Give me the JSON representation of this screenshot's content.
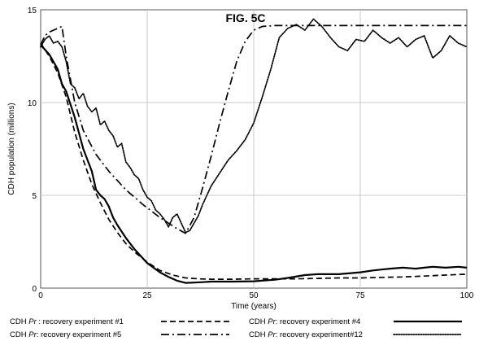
{
  "chart_data": {
    "type": "line",
    "title": "FIG. 5C",
    "xlabel": "Time (years)",
    "ylabel": "CDH population (millions)",
    "xlim": [
      0,
      100
    ],
    "ylim": [
      0,
      15
    ],
    "x_ticks": [
      "0",
      "25",
      "50",
      "75",
      "100"
    ],
    "y_ticks": [
      "0",
      "5",
      "10",
      "15"
    ],
    "grid": true,
    "legend_position": "bottom",
    "series": [
      {
        "name_prefix": "CDH ",
        "name_italic": "Pr",
        "name_suffix": " : recovery experiment #1",
        "style": "dashed",
        "x": [
          0,
          2,
          4,
          6,
          8,
          10,
          12,
          14,
          16,
          18,
          20,
          22,
          25,
          28,
          31,
          34,
          37,
          40,
          45,
          50,
          55,
          60,
          65,
          70,
          75,
          80,
          85,
          90,
          95,
          100
        ],
        "y": [
          13.2,
          12.5,
          11.6,
          10.3,
          8.4,
          6.9,
          5.6,
          4.6,
          3.7,
          3.0,
          2.4,
          1.95,
          1.4,
          0.95,
          0.7,
          0.55,
          0.5,
          0.48,
          0.48,
          0.5,
          0.5,
          0.5,
          0.52,
          0.55,
          0.55,
          0.58,
          0.6,
          0.65,
          0.7,
          0.75
        ]
      },
      {
        "name_prefix": "CDH ",
        "name_italic": "Pr",
        "name_suffix": ": recovery experiment #4",
        "style": "solid",
        "x": [
          0,
          2,
          4,
          5,
          6,
          8,
          10,
          12,
          13,
          14,
          15,
          16,
          17,
          18,
          20,
          22,
          25,
          28,
          30,
          32,
          34,
          36,
          38,
          40,
          45,
          50,
          55,
          58,
          62,
          65,
          70,
          75,
          78,
          80,
          82,
          85,
          88,
          90,
          92,
          95,
          98,
          100
        ],
        "y": [
          13.1,
          12.6,
          11.8,
          11.0,
          10.6,
          9.2,
          7.5,
          6.3,
          5.3,
          5.0,
          4.8,
          4.4,
          3.8,
          3.4,
          2.7,
          2.1,
          1.35,
          0.85,
          0.6,
          0.4,
          0.28,
          0.3,
          0.32,
          0.35,
          0.35,
          0.37,
          0.45,
          0.55,
          0.7,
          0.75,
          0.75,
          0.85,
          0.95,
          1.0,
          1.05,
          1.1,
          1.05,
          1.1,
          1.15,
          1.1,
          1.15,
          1.1
        ]
      },
      {
        "name_prefix": "CDH ",
        "name_italic": "Pr",
        "name_suffix": ": recovery experiment #5",
        "style": "dashdot",
        "x": [
          0,
          1,
          2,
          3,
          4,
          5,
          6,
          8,
          10,
          13,
          16,
          20,
          24,
          28,
          32,
          34,
          36,
          38,
          40,
          42,
          44,
          46,
          48,
          50,
          52,
          55,
          58,
          60,
          70,
          80,
          90,
          100
        ],
        "y": [
          13.1,
          13.6,
          13.8,
          13.9,
          14.0,
          14.1,
          12.5,
          10.0,
          8.5,
          7.2,
          6.3,
          5.3,
          4.5,
          3.8,
          3.2,
          2.95,
          3.8,
          5.4,
          7.1,
          8.9,
          10.6,
          12.2,
          13.3,
          13.9,
          14.1,
          14.15,
          14.15,
          14.15,
          14.15,
          14.15,
          14.15,
          14.15
        ]
      },
      {
        "name_prefix": "CDH ",
        "name_italic": "Pr",
        "name_suffix": ": recovery experiment#12",
        "style": "dotted",
        "x": [
          0,
          1,
          2,
          3,
          4,
          5,
          6,
          7,
          8,
          9,
          10,
          11,
          12,
          13,
          14,
          15,
          16,
          17,
          18,
          19,
          20,
          21,
          22,
          23,
          24,
          25,
          26,
          27,
          28,
          29,
          30,
          31,
          32,
          33,
          34,
          35,
          36,
          37,
          38,
          40,
          42,
          44,
          46,
          48,
          50,
          52,
          54,
          56,
          58,
          60,
          62,
          64,
          66,
          68,
          70,
          72,
          74,
          76,
          78,
          80,
          82,
          84,
          86,
          88,
          90,
          92,
          94,
          96,
          98,
          100
        ],
        "y": [
          13.0,
          13.4,
          13.6,
          13.2,
          13.3,
          13.0,
          12.2,
          11.0,
          10.8,
          10.2,
          10.5,
          9.8,
          9.5,
          9.7,
          8.8,
          9.0,
          8.5,
          8.2,
          7.6,
          7.8,
          6.8,
          6.5,
          6.1,
          5.9,
          5.3,
          4.9,
          4.7,
          4.2,
          4.0,
          3.7,
          3.3,
          3.8,
          4.0,
          3.5,
          3.0,
          3.1,
          3.5,
          3.9,
          4.5,
          5.5,
          6.2,
          6.9,
          7.4,
          8.0,
          8.9,
          10.3,
          11.8,
          13.5,
          14.0,
          14.2,
          13.9,
          14.5,
          14.1,
          13.5,
          13.0,
          12.8,
          13.4,
          13.3,
          13.9,
          13.5,
          13.2,
          13.5,
          13.0,
          13.4,
          13.6,
          12.4,
          12.8,
          13.6,
          13.2,
          13.0
        ]
      }
    ]
  }
}
